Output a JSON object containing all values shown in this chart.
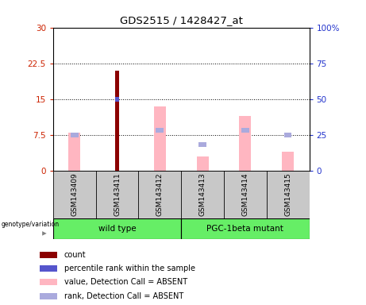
{
  "title": "GDS2515 / 1428427_at",
  "samples": [
    "GSM143409",
    "GSM143411",
    "GSM143412",
    "GSM143413",
    "GSM143414",
    "GSM143415"
  ],
  "count_values": [
    0,
    21,
    0,
    0,
    0,
    0
  ],
  "percentile_rank_values": [
    0,
    15,
    0,
    0,
    0,
    0
  ],
  "value_absent": [
    8.0,
    0,
    13.5,
    3.0,
    11.5,
    4.0
  ],
  "rank_absent": [
    7.5,
    0,
    8.5,
    5.5,
    8.5,
    7.5
  ],
  "ylim_left": [
    0,
    30
  ],
  "ylim_right": [
    0,
    100
  ],
  "yticks_left": [
    0,
    7.5,
    15,
    22.5,
    30
  ],
  "yticks_right": [
    0,
    25,
    50,
    75,
    100
  ],
  "ytick_labels_left": [
    "0",
    "7.5",
    "15",
    "22.5",
    "30"
  ],
  "ytick_labels_right": [
    "0",
    "25",
    "50",
    "75",
    "100%"
  ],
  "hlines": [
    7.5,
    15,
    22.5
  ],
  "count_color": "#8B0000",
  "percentile_color": "#5555CC",
  "value_absent_color": "#FFB6C1",
  "rank_absent_color": "#AAAADD",
  "left_tick_color": "#CC2200",
  "right_tick_color": "#2233CC",
  "bg_sample_row": "#C8C8C8",
  "bg_group_row": "#66EE66",
  "group_wt_label": "wild type",
  "group_pgc_label": "PGC-1beta mutant",
  "legend_items": [
    {
      "label": "count",
      "color": "#8B0000"
    },
    {
      "label": "percentile rank within the sample",
      "color": "#5555CC"
    },
    {
      "label": "value, Detection Call = ABSENT",
      "color": "#FFB6C1"
    },
    {
      "label": "rank, Detection Call = ABSENT",
      "color": "#AAAADD"
    }
  ],
  "genotype_label": "genotype/variation"
}
